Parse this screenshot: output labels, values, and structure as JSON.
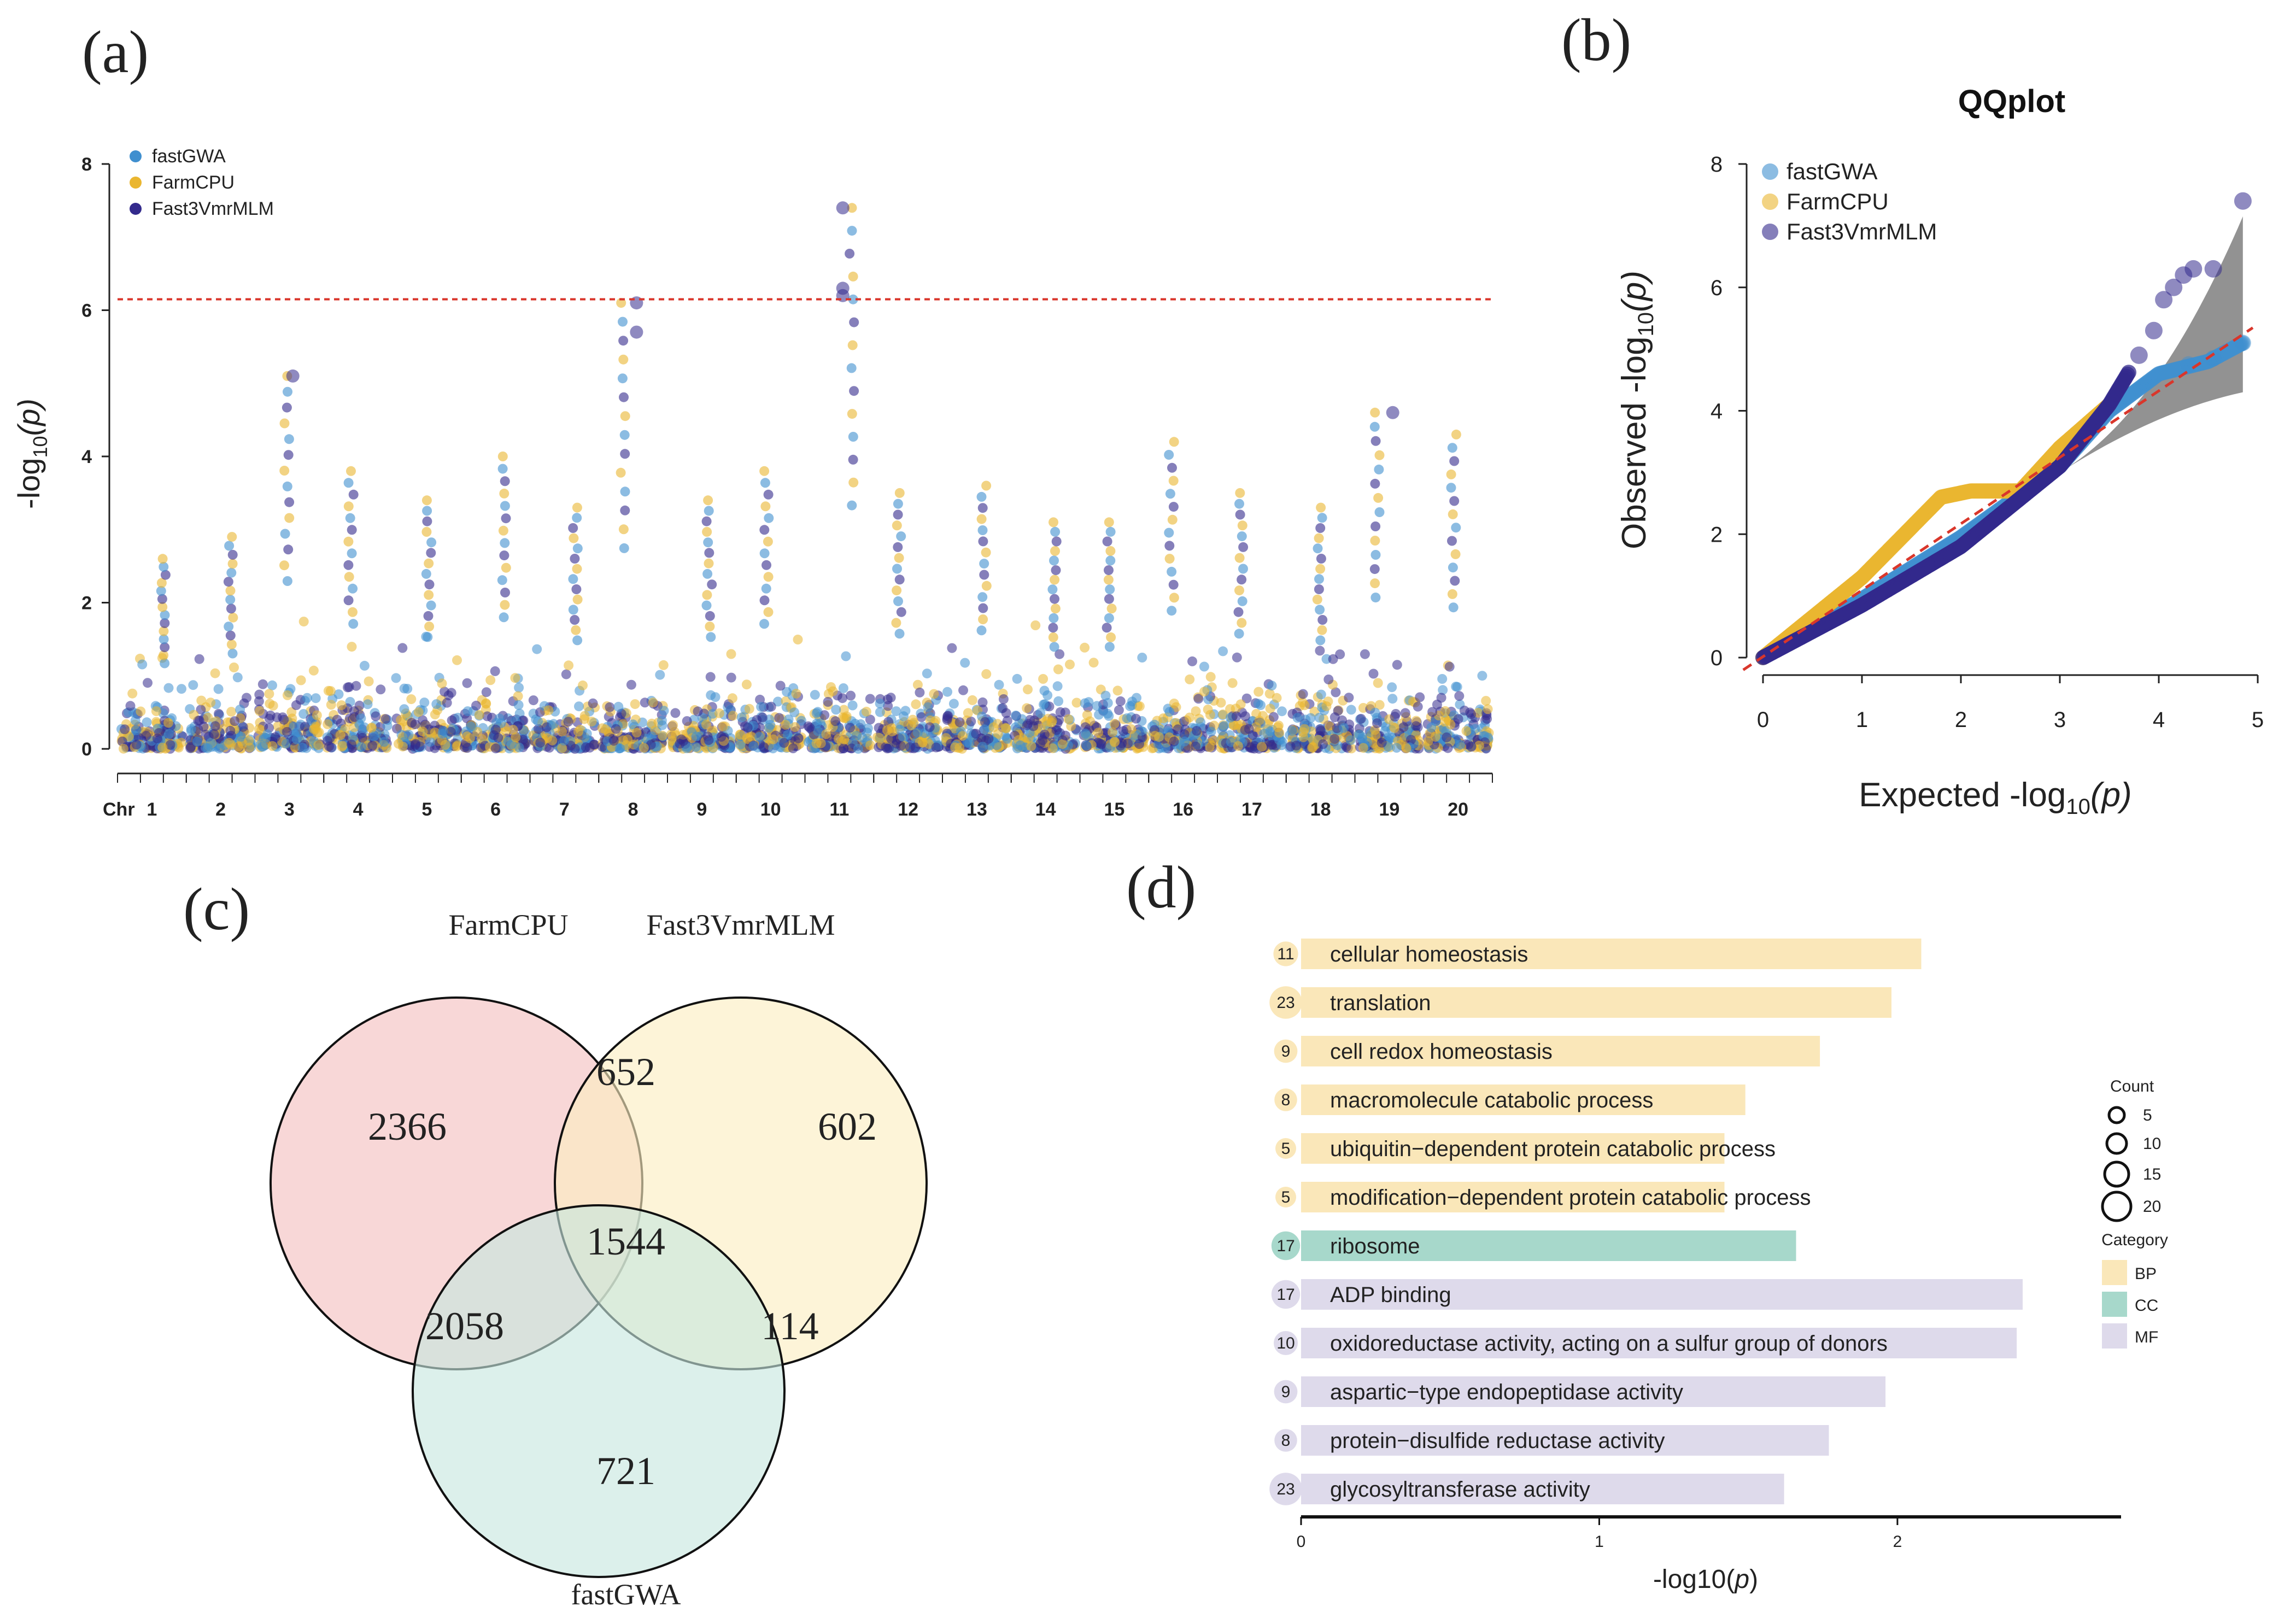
{
  "colors": {
    "fastGWA": "#3f8fcf",
    "FarmCPU": "#eab630",
    "Fast3VmrMLM": "#332a8c",
    "threshold": "#d9362b",
    "venn_farmcpu": "#f3bfbf",
    "venn_fast3": "#fbedc0",
    "venn_fastgwa": "#c7e6de",
    "BP": "#fae7b9",
    "CC": "#a7d8cb",
    "MF": "#dedaeb"
  },
  "chart_data": [
    {
      "id": "a",
      "type": "scatter",
      "panel_label": "(a)",
      "subtype": "manhattan",
      "title": "",
      "ylabel": "-log10(p)",
      "ylabel_main": "-log",
      "ylabel_sub": "10",
      "ylabel_paren": "(p)",
      "ylim": [
        0,
        8
      ],
      "yticks": [
        "0",
        "2",
        "4",
        "6",
        "8"
      ],
      "xlabel_prefix": "Chr",
      "chromosomes": [
        "1",
        "2",
        "3",
        "4",
        "5",
        "6",
        "7",
        "8",
        "9",
        "10",
        "11",
        "12",
        "13",
        "14",
        "15",
        "16",
        "17",
        "18",
        "19",
        "20"
      ],
      "threshold": 6.15,
      "legend": [
        "fastGWA",
        "FarmCPU",
        "Fast3VmrMLM"
      ],
      "chromosome_peak_values": [
        2.6,
        2.9,
        5.1,
        3.8,
        3.4,
        4.0,
        3.3,
        6.1,
        3.4,
        3.8,
        7.4,
        3.5,
        3.6,
        3.1,
        3.1,
        4.2,
        3.5,
        3.3,
        4.6,
        4.3
      ],
      "notable_points": [
        {
          "chr": "8",
          "value": 6.1
        },
        {
          "chr": "8",
          "value": 5.7
        },
        {
          "chr": "11",
          "value": 7.4
        },
        {
          "chr": "11",
          "value": 6.3
        },
        {
          "chr": "11",
          "value": 6.2
        },
        {
          "chr": "3",
          "value": 5.1
        },
        {
          "chr": "19",
          "value": 4.6
        }
      ]
    },
    {
      "id": "b",
      "type": "scatter",
      "panel_label": "(b)",
      "subtype": "qq",
      "title": "QQplot",
      "xlabel": "Expected  -log10(p)",
      "xlabel_main": "Expected  -log",
      "xlabel_sub": "10",
      "xlabel_paren": "(p)",
      "ylabel": "Observed  -log10(p)",
      "ylabel_main": "Observed  -log",
      "ylabel_sub": "10",
      "ylabel_paren": "(p)",
      "xlim": [
        0,
        5
      ],
      "ylim": [
        0,
        8
      ],
      "xticks": [
        "0",
        "1",
        "2",
        "3",
        "4",
        "5"
      ],
      "yticks": [
        "0",
        "2",
        "4",
        "6",
        "8"
      ],
      "legend": [
        "fastGWA",
        "FarmCPU",
        "Fast3VmrMLM"
      ],
      "series": [
        {
          "name": "fastGWA",
          "x": [
            0,
            1,
            2,
            3,
            3.5,
            4,
            4.5,
            4.85
          ],
          "y": [
            0,
            0.95,
            1.95,
            3.1,
            4.0,
            4.6,
            4.8,
            5.1
          ]
        },
        {
          "name": "FarmCPU",
          "x": [
            0,
            1,
            1.8,
            2.1,
            2.6,
            3.0,
            3.5
          ],
          "y": [
            0,
            1.3,
            2.6,
            2.7,
            2.7,
            3.4,
            4.1
          ]
        },
        {
          "name": "Fast3VmrMLM",
          "x": [
            0,
            1,
            2,
            3,
            3.5,
            3.8,
            4.0,
            4.2,
            4.35,
            4.5,
            4.85
          ],
          "y": [
            0,
            0.85,
            1.8,
            3.1,
            4.1,
            4.9,
            5.8,
            6.1,
            6.3,
            6.3,
            7.4
          ]
        }
      ]
    },
    {
      "id": "c",
      "type": "table",
      "subtype": "venn",
      "panel_label": "(c)",
      "sets": [
        "FarmCPU",
        "Fast3VmrMLM",
        "fastGWA"
      ],
      "regions": {
        "farmcpu_only": "2366",
        "fast3_only": "602",
        "fastgwa_only": "721",
        "farmcpu_fast3": "652",
        "farmcpu_fastgwa": "2058",
        "fast3_fastgwa": "114",
        "all_three": "1544"
      }
    },
    {
      "id": "d",
      "type": "bar",
      "panel_label": "(d)",
      "xlabel": "-log10(p)",
      "xlabel_main": "-log10(",
      "xlabel_ital": "p",
      "xlabel_close": ")",
      "xlim": [
        0,
        2.75
      ],
      "xticks": [
        "0",
        "1",
        "2"
      ],
      "count_title": "Count",
      "count_sizes": [
        "5",
        "10",
        "15",
        "20"
      ],
      "category_title": "Category",
      "categories_legend": [
        "BP",
        "CC",
        "MF"
      ],
      "terms": [
        {
          "term": "cellular homeostasis",
          "value": 2.08,
          "count": "11",
          "category": "BP"
        },
        {
          "term": "translation",
          "value": 1.98,
          "count": "23",
          "category": "BP"
        },
        {
          "term": "cell redox homeostasis",
          "value": 1.74,
          "count": "9",
          "category": "BP"
        },
        {
          "term": "macromolecule catabolic process",
          "value": 1.49,
          "count": "8",
          "category": "BP"
        },
        {
          "term": "ubiquitin−dependent protein catabolic process",
          "value": 1.42,
          "count": "5",
          "category": "BP"
        },
        {
          "term": "modification−dependent protein catabolic process",
          "value": 1.42,
          "count": "5",
          "category": "BP"
        },
        {
          "term": "ribosome",
          "value": 1.66,
          "count": "17",
          "category": "CC"
        },
        {
          "term": "ADP binding",
          "value": 2.42,
          "count": "17",
          "category": "MF"
        },
        {
          "term": "oxidoreductase activity, acting on a sulfur group of donors",
          "value": 2.4,
          "count": "10",
          "category": "MF"
        },
        {
          "term": "aspartic−type endopeptidase activity",
          "value": 1.96,
          "count": "9",
          "category": "MF"
        },
        {
          "term": "protein−disulfide reductase activity",
          "value": 1.77,
          "count": "8",
          "category": "MF"
        },
        {
          "term": "glycosyltransferase activity",
          "value": 1.62,
          "count": "23",
          "category": "MF"
        }
      ]
    }
  ]
}
